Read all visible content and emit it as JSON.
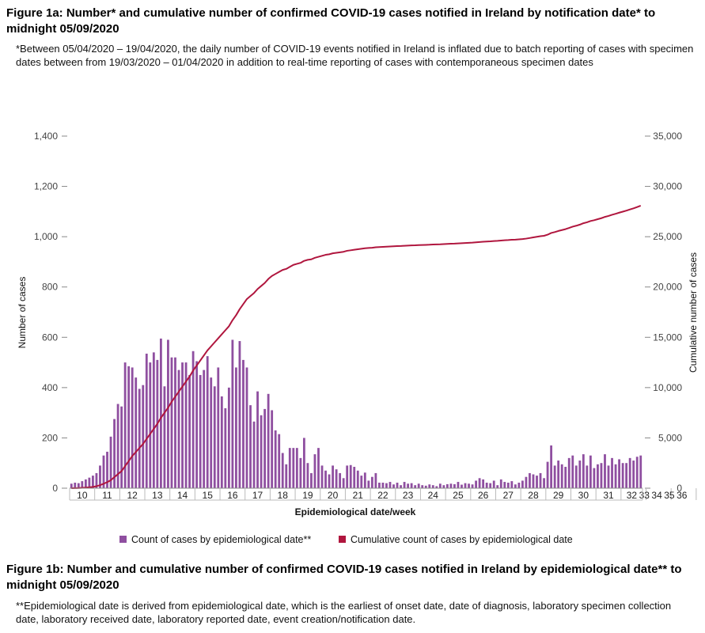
{
  "figure_1a": {
    "title": "Figure 1a: Number* and cumulative number of confirmed COVID-19 cases notified in Ireland by notification date* to midnight 05/09/2020",
    "note": "*Between 05/04/2020 – 19/04/2020, the daily number of COVID-19 events notified in Ireland is inflated due to batch reporting of cases with specimen dates between from 19/03/2020 – 01/04/2020 in addition to real-time reporting of cases with contemporaneous specimen dates"
  },
  "figure_1b": {
    "title": "Figure 1b: Number and cumulative number of confirmed COVID-19 cases notified in Ireland by epidemiological date** to midnight 05/09/2020",
    "note": "**Epidemiological date is derived from epidemiological date, which is the earliest of onset date, date of diagnosis, laboratory specimen collection date, laboratory received date, laboratory reported date, event creation/notification date."
  },
  "colors": {
    "bar": "#8f4fa0",
    "line": "#b0163e",
    "axis": "#888888",
    "grid": "#dddddd"
  },
  "chart_data": {
    "type": "bar",
    "xlabel": "Epidemiological date/week",
    "ylabel": "Number of cases",
    "y2label": "Cumulative number of cases",
    "ylim": [
      0,
      1400
    ],
    "y2lim": [
      0,
      35000
    ],
    "yticks": [
      "0",
      "200",
      "400",
      "600",
      "800",
      "1,000",
      "1,200",
      "1,400"
    ],
    "y2ticks": [
      "0",
      "5,000",
      "10,000",
      "15,000",
      "20,000",
      "25,000",
      "30,000",
      "35,000"
    ],
    "weeks": [
      "10",
      "11",
      "12",
      "13",
      "14",
      "15",
      "16",
      "17",
      "18",
      "19",
      "20",
      "21",
      "22",
      "23",
      "24",
      "25",
      "26",
      "27",
      "28",
      "29",
      "30",
      "31",
      "32",
      "33",
      "34",
      "35",
      "36"
    ],
    "days_per_week": 7,
    "series": [
      {
        "name": "Count of cases by epidemiological date**",
        "type": "bar",
        "axis": "left",
        "values": [
          18,
          22,
          20,
          28,
          35,
          42,
          50,
          60,
          90,
          130,
          145,
          205,
          275,
          335,
          325,
          500,
          485,
          480,
          440,
          395,
          410,
          535,
          500,
          540,
          510,
          595,
          405,
          590,
          520,
          520,
          470,
          500,
          500,
          450,
          545,
          505,
          450,
          470,
          525,
          440,
          405,
          480,
          365,
          318,
          400,
          590,
          480,
          585,
          510,
          480,
          330,
          265,
          385,
          290,
          315,
          375,
          310,
          230,
          215,
          140,
          95,
          160,
          160,
          160,
          120,
          200,
          100,
          60,
          135,
          160,
          90,
          70,
          55,
          90,
          75,
          60,
          40,
          90,
          92,
          85,
          70,
          50,
          62,
          30,
          45,
          60,
          22,
          22,
          20,
          25,
          15,
          22,
          12,
          25,
          18,
          20,
          12,
          18,
          12,
          10,
          15,
          12,
          8,
          18,
          12,
          16,
          18,
          16,
          25,
          14,
          20,
          18,
          15,
          30,
          40,
          35,
          22,
          20,
          30,
          12,
          35,
          25,
          22,
          28,
          15,
          22,
          30,
          45,
          60,
          55,
          50,
          60,
          40,
          105,
          170,
          90,
          110,
          95,
          85,
          120,
          130,
          90,
          110,
          135,
          90,
          130,
          80,
          95,
          100,
          135,
          90,
          120,
          95,
          115,
          100,
          100,
          120,
          110,
          125,
          130
        ]
      },
      {
        "name": "Cumulative count of cases by epidemiological date",
        "type": "line",
        "axis": "right",
        "values": [
          0,
          10,
          20,
          40,
          60,
          90,
          130,
          200,
          300,
          450,
          600,
          800,
          1100,
          1400,
          1700,
          2200,
          2700,
          3200,
          3600,
          4000,
          4400,
          4900,
          5400,
          5900,
          6400,
          7000,
          7500,
          8000,
          8600,
          9100,
          9600,
          10100,
          10600,
          11100,
          11700,
          12200,
          12700,
          13200,
          13700,
          14100,
          14500,
          14900,
          15300,
          15700,
          16100,
          16700,
          17200,
          17800,
          18300,
          18800,
          19100,
          19400,
          19800,
          20100,
          20400,
          20800,
          21100,
          21300,
          21500,
          21700,
          21800,
          22000,
          22200,
          22300,
          22400,
          22600,
          22700,
          22750,
          22900,
          23000,
          23100,
          23200,
          23250,
          23350,
          23400,
          23450,
          23500,
          23600,
          23650,
          23700,
          23750,
          23800,
          23850,
          23880,
          23900,
          23950,
          23970,
          23990,
          24010,
          24030,
          24050,
          24070,
          24080,
          24100,
          24120,
          24140,
          24150,
          24170,
          24180,
          24190,
          24200,
          24220,
          24230,
          24240,
          24260,
          24280,
          24300,
          24310,
          24330,
          24350,
          24370,
          24390,
          24410,
          24440,
          24470,
          24500,
          24520,
          24540,
          24570,
          24590,
          24620,
          24650,
          24670,
          24700,
          24710,
          24740,
          24770,
          24810,
          24870,
          24930,
          24990,
          25050,
          25090,
          25200,
          25370,
          25460,
          25570,
          25660,
          25750,
          25870,
          26000,
          26090,
          26200,
          26340,
          26430,
          26560,
          26640,
          26740,
          26840,
          26970,
          27060,
          27180,
          27280,
          27390,
          27490,
          27590,
          27710,
          27820,
          27950,
          28080
        ]
      }
    ],
    "legend_position": "bottom"
  }
}
